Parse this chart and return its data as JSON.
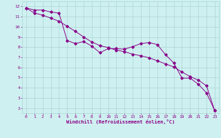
{
  "line1_x": [
    0,
    1,
    2,
    3,
    4,
    5,
    6,
    7,
    8,
    9,
    10,
    11,
    12,
    13,
    14,
    15,
    16,
    17,
    18,
    19,
    20,
    21,
    22,
    23
  ],
  "line1_y": [
    11.85,
    11.65,
    11.65,
    11.45,
    11.35,
    8.65,
    8.35,
    8.55,
    8.1,
    7.45,
    7.85,
    7.85,
    7.8,
    8.05,
    8.35,
    8.45,
    8.25,
    7.25,
    6.45,
    4.95,
    4.95,
    4.35,
    3.5,
    1.75
  ],
  "line2_x": [
    0,
    1,
    2,
    3,
    4,
    5,
    6,
    7,
    8,
    9,
    10,
    11,
    12,
    13,
    14,
    15,
    16,
    17,
    18,
    19,
    20,
    21,
    22,
    23
  ],
  "line2_y": [
    11.85,
    11.35,
    11.15,
    10.85,
    10.55,
    10.05,
    9.55,
    9.0,
    8.5,
    8.15,
    7.95,
    7.7,
    7.55,
    7.3,
    7.15,
    6.95,
    6.65,
    6.35,
    6.05,
    5.55,
    5.1,
    4.75,
    4.2,
    1.75
  ],
  "bg_color": "#cff0f0",
  "grid_color": "#aad4d4",
  "line_color": "#880088",
  "xlabel": "Windchill (Refroidissement éolien,°C)",
  "xlim": [
    -0.5,
    23.5
  ],
  "ylim": [
    1.5,
    12.5
  ],
  "xticks": [
    0,
    1,
    2,
    3,
    4,
    5,
    6,
    7,
    8,
    9,
    10,
    11,
    12,
    13,
    14,
    15,
    16,
    17,
    18,
    19,
    20,
    21,
    22,
    23
  ],
  "yticks": [
    2,
    3,
    4,
    5,
    6,
    7,
    8,
    9,
    10,
    11,
    12
  ]
}
